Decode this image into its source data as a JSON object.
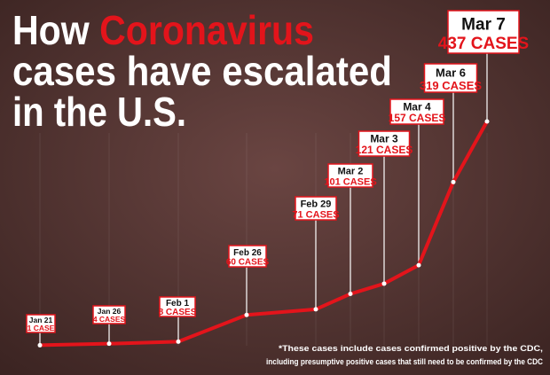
{
  "chart_data": {
    "type": "line",
    "title": [
      "How",
      "Coronavirus",
      "cases have escalated",
      "in the U.S."
    ],
    "categories": [
      "Jan 21",
      "Jan 26",
      "Feb 1",
      "Feb 26",
      "Feb 29",
      "Mar 2",
      "Mar 3",
      "Mar 4",
      "Mar 6",
      "Mar 7"
    ],
    "values": [
      1,
      4,
      8,
      60,
      71,
      101,
      121,
      157,
      319,
      437
    ],
    "value_labels": [
      "1 CASE",
      "4 CASES",
      "8 CASES",
      "60 CASES",
      "71 CASES",
      "101 CASES",
      "121 CASES",
      "157 CASES",
      "319 CASES",
      "437 CASES"
    ],
    "color": "#e3141b",
    "footnote": [
      "*These cases include cases confirmed positive by the CDC,",
      "including presumptive positive cases that still need to be confirmed by the CDC"
    ]
  }
}
